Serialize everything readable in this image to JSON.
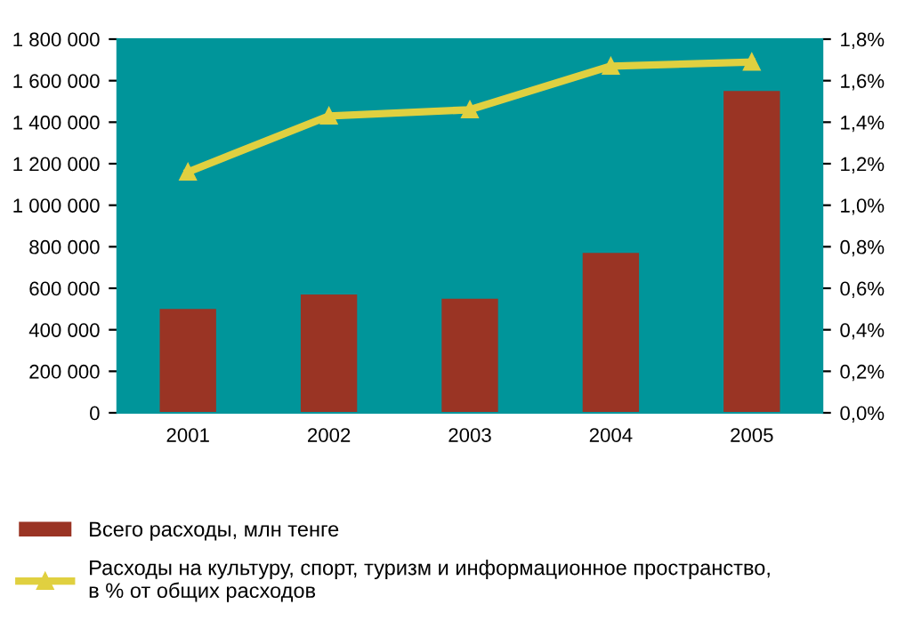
{
  "chart_data": {
    "type": "bar",
    "categories": [
      "2001",
      "2002",
      "2003",
      "2004",
      "2005"
    ],
    "series": [
      {
        "name": "Всего расходы, млн тенге",
        "color": "#9a3424",
        "values": [
          500000,
          570000,
          550000,
          770000,
          1550000
        ]
      },
      {
        "name": "Расходы на культуру, спорт, туризм и информационное пространство,\nв % от общих расходов",
        "type": "line",
        "axis": "y2",
        "color": "#e0d040",
        "marker": "triangle",
        "values": [
          1.16,
          1.43,
          1.46,
          1.67,
          1.69
        ]
      }
    ],
    "ylim": [
      0,
      1800000
    ],
    "yticks": [
      {
        "value": 0,
        "label": "0"
      },
      {
        "value": 200000,
        "label": "200 000"
      },
      {
        "value": 400000,
        "label": "400 000"
      },
      {
        "value": 600000,
        "label": "600 000"
      },
      {
        "value": 800000,
        "label": "800 000"
      },
      {
        "value": 1000000,
        "label": "1 000 000"
      },
      {
        "value": 1200000,
        "label": "1 200 000"
      },
      {
        "value": 1400000,
        "label": "1 400 000"
      },
      {
        "value": 1600000,
        "label": "1 600 000"
      },
      {
        "value": 1800000,
        "label": "1 800 000"
      }
    ],
    "y2lim": [
      0,
      1.8
    ],
    "y2ticks": [
      {
        "value": 0,
        "label": "0,0%"
      },
      {
        "value": 0.2,
        "label": "0,2%"
      },
      {
        "value": 0.4,
        "label": "0,4%"
      },
      {
        "value": 0.6,
        "label": "0,6%"
      },
      {
        "value": 0.8,
        "label": "0,8%"
      },
      {
        "value": 1.0,
        "label": "1,0%"
      },
      {
        "value": 1.2,
        "label": "1,2%"
      },
      {
        "value": 1.4,
        "label": "1,4%"
      },
      {
        "value": 1.6,
        "label": "1,6%"
      },
      {
        "value": 1.8,
        "label": "1,8%"
      }
    ],
    "grid": false,
    "legend": "bottom left"
  }
}
